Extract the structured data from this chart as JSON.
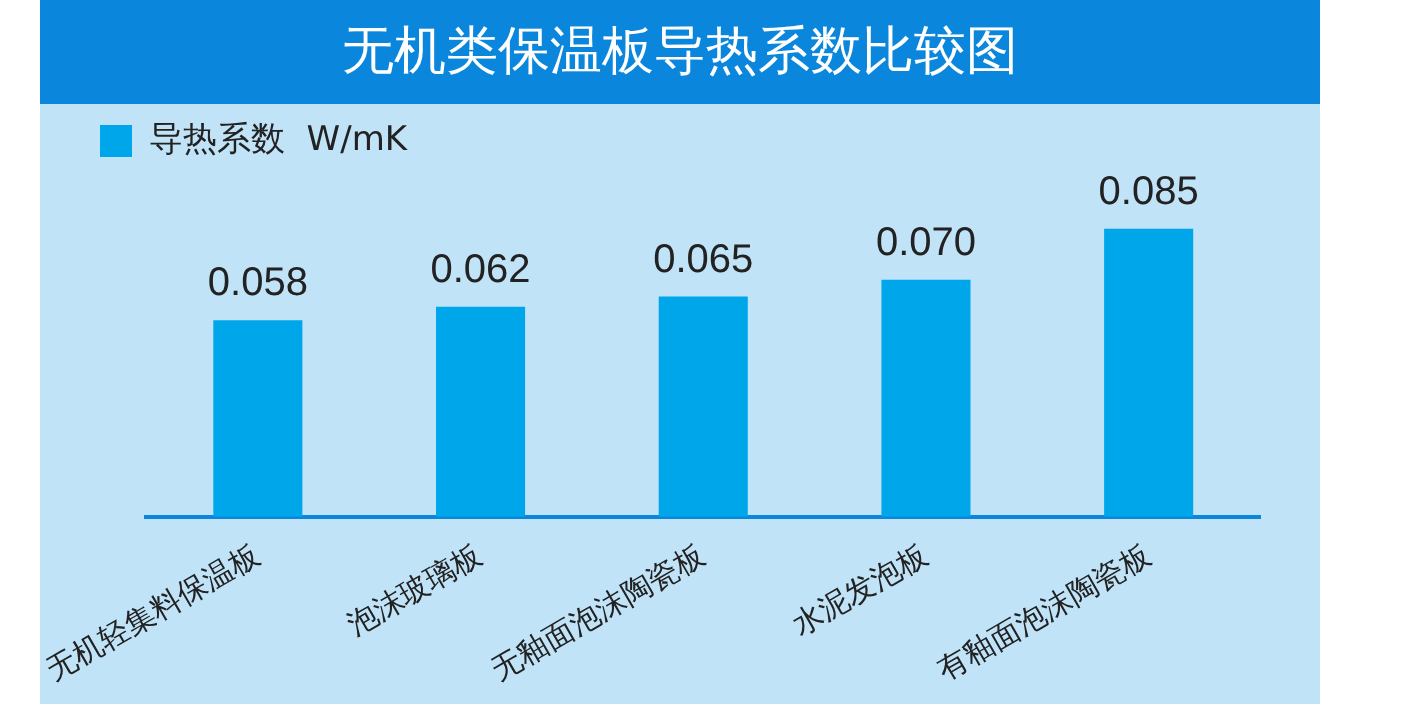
{
  "chart_data": {
    "type": "bar",
    "title": "无机类保温板导热系数比较图",
    "categories": [
      "无机轻集料保温板",
      "泡沫玻璃板",
      "无釉面泡沫陶瓷板",
      "水泥发泡板",
      "有釉面泡沫陶瓷板"
    ],
    "series": [
      {
        "name": "导热系数  W/mK",
        "color": "#00a6ea",
        "values": [
          0.058,
          0.062,
          0.065,
          0.07,
          0.085
        ],
        "value_labels": [
          "0.058",
          "0.062",
          "0.065",
          "0.070",
          "0.085"
        ]
      }
    ],
    "legend": "top left",
    "grid": false
  }
}
